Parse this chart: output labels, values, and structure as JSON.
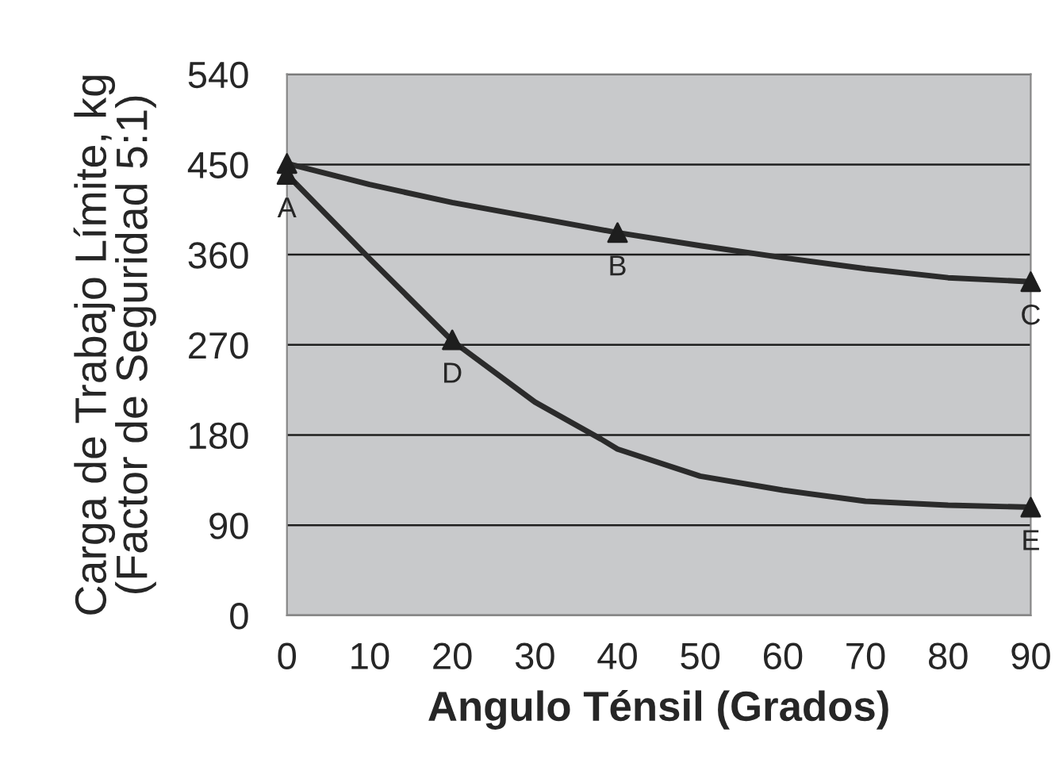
{
  "chart_data": {
    "type": "line",
    "xlabel": "Angulo Ténsil (Grados)",
    "ylabel": "Carga de Trabajo Límite, kg\n(Factor de Seguridad 5:1)",
    "xlim": [
      0,
      90
    ],
    "xticks": [
      0,
      10,
      20,
      30,
      40,
      50,
      60,
      70,
      80,
      90
    ],
    "ylim": [
      0,
      540
    ],
    "yticks": [
      0,
      90,
      180,
      270,
      360,
      450,
      540
    ],
    "grid": "y",
    "legend": false,
    "line_style": "solid",
    "series": [
      {
        "color": "#2b2b2b",
        "x": [
          0,
          10,
          20,
          30,
          40,
          50,
          60,
          70,
          80,
          90
        ],
        "values": [
          451,
          430,
          412,
          397,
          382,
          369,
          357,
          346,
          337,
          333
        ]
      },
      {
        "color": "#2b2b2b",
        "x": [
          0,
          10,
          20,
          30,
          38,
          40,
          50,
          60,
          70,
          80,
          90
        ],
        "values": [
          440,
          356,
          274,
          213,
          176,
          166,
          139,
          125,
          114,
          110,
          108
        ]
      },
      {
        "type": "scatter",
        "marker": "triangle",
        "color": "#1e1e1e",
        "x": [
          0,
          0,
          40,
          90,
          20,
          90
        ],
        "values": [
          451,
          440,
          382,
          333,
          275,
          108
        ]
      }
    ],
    "annotations": [
      {
        "text": "A",
        "x": 0,
        "y": 440
      },
      {
        "text": "B",
        "x": 40,
        "y": 382
      },
      {
        "text": "C",
        "x": 90,
        "y": 333
      },
      {
        "text": "D",
        "x": 20,
        "y": 275
      },
      {
        "text": "E",
        "x": 90,
        "y": 108
      }
    ]
  }
}
